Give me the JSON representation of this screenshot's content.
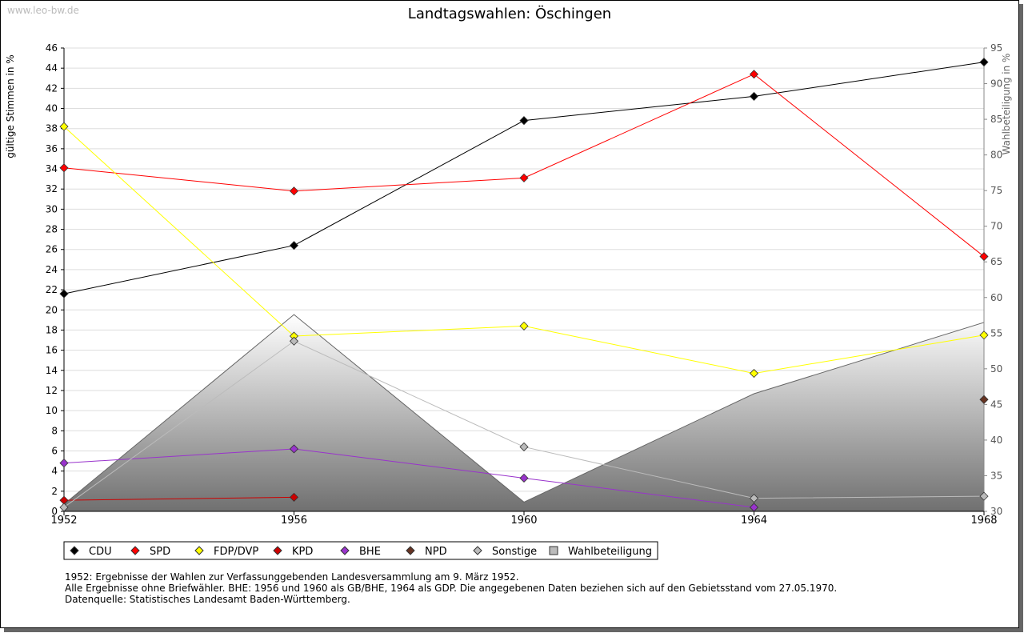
{
  "watermark": "www.leo-bw.de",
  "chart_data": {
    "type": "line",
    "title": "Landtagswahlen: Öschingen",
    "ylabel": "gültige Stimmen in %",
    "y2label": "Wahlbeteiligung in %",
    "x": [
      1952,
      1956,
      1960,
      1964,
      1968
    ],
    "ylim": [
      0,
      46
    ],
    "y2lim": [
      30,
      95
    ],
    "yticks": [
      0,
      2,
      4,
      6,
      8,
      10,
      12,
      14,
      16,
      18,
      20,
      22,
      24,
      26,
      28,
      30,
      32,
      34,
      36,
      38,
      40,
      42,
      44,
      46
    ],
    "y2ticks": [
      30,
      35,
      40,
      45,
      50,
      55,
      60,
      65,
      70,
      75,
      80,
      85,
      90,
      95
    ],
    "grid": true,
    "legend_position": "bottom",
    "series": [
      {
        "name": "CDU",
        "color": "#000000",
        "values": [
          21.6,
          26.4,
          38.8,
          41.2,
          44.6
        ]
      },
      {
        "name": "SPD",
        "color": "#ff0000",
        "values": [
          34.1,
          31.8,
          33.1,
          43.4,
          25.3
        ]
      },
      {
        "name": "FDP/DVP",
        "color": "#ffff00",
        "values": [
          38.2,
          17.4,
          18.4,
          13.7,
          17.5
        ]
      },
      {
        "name": "KPD",
        "color": "#cc0000",
        "values": [
          1.1,
          1.4,
          null,
          null,
          null
        ]
      },
      {
        "name": "BHE",
        "color": "#9933cc",
        "values": [
          4.8,
          6.2,
          3.3,
          0.4,
          null
        ]
      },
      {
        "name": "NPD",
        "color": "#663322",
        "values": [
          null,
          null,
          null,
          null,
          11.1
        ]
      },
      {
        "name": "Sonstige",
        "color": "#bbbbbb",
        "values": [
          0.4,
          16.9,
          6.4,
          1.3,
          1.5
        ]
      }
    ],
    "area": {
      "name": "Wahlbeteiligung",
      "axis": "right",
      "values": [
        31.0,
        57.6,
        31.3,
        46.5,
        56.5
      ]
    }
  },
  "notes": [
    "1952: Ergebnisse der Wahlen zur Verfassunggebenden Landesversammlung am 9. März 1952.",
    "Alle Ergebnisse ohne Briefwähler. BHE: 1956 und 1960 als GB/BHE, 1964 als GDP. Die angegebenen Daten beziehen sich auf den Gebietsstand vom 27.05.1970.",
    "",
    "Datenquelle: Statistisches Landesamt Baden-Württemberg."
  ]
}
